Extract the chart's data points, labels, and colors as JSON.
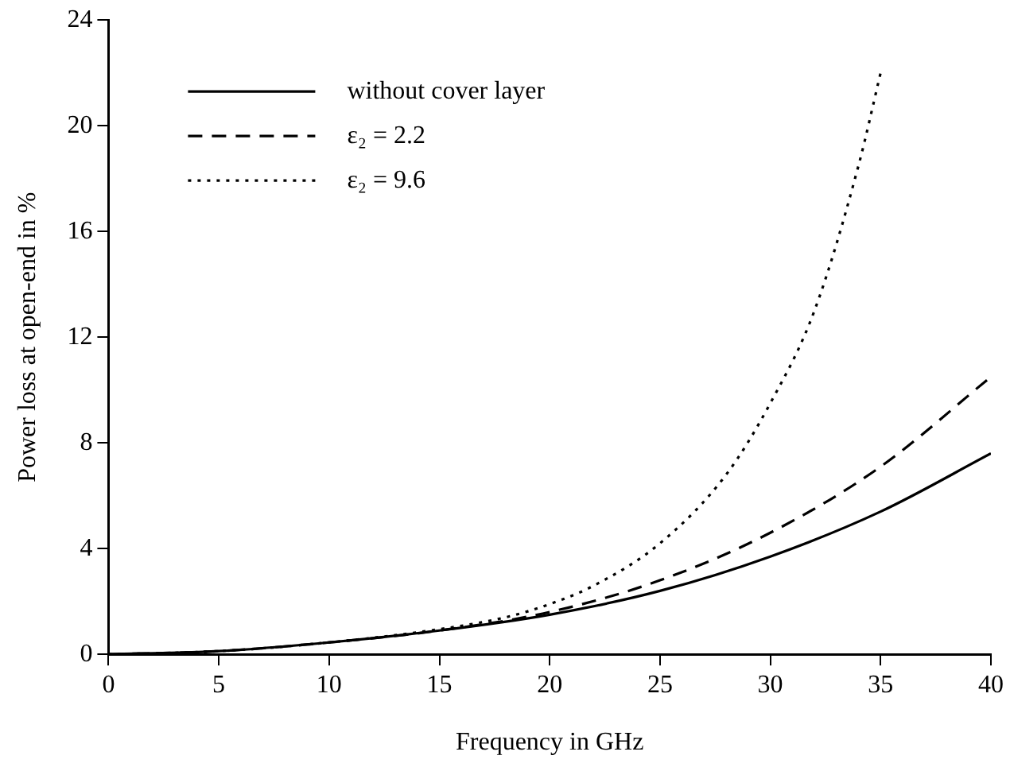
{
  "chart_data": {
    "type": "line",
    "xlabel": "Frequency in GHz",
    "ylabel": "Power loss at open-end in %",
    "xlim": [
      0,
      40
    ],
    "xticks": [
      0,
      5,
      10,
      15,
      20,
      25,
      30,
      35,
      40
    ],
    "ylim": [
      0,
      24
    ],
    "yticks": [
      0,
      4,
      8,
      12,
      16,
      20,
      24
    ],
    "grid": false,
    "legend": "top left",
    "marker": "none",
    "series": [
      {
        "name": "without cover layer",
        "color": "#000000",
        "line_style": "solid",
        "x": [
          0,
          5,
          10,
          15,
          20,
          25,
          30,
          35,
          40
        ],
        "values": [
          0,
          0.12,
          0.45,
          0.9,
          1.5,
          2.4,
          3.7,
          5.4,
          7.6
        ]
      },
      {
        "name": "ε₂ = 2.2",
        "color": "#000000",
        "line_style": "dashed",
        "x": [
          0,
          5,
          10,
          15,
          20,
          25,
          30,
          35,
          40
        ],
        "values": [
          0,
          0.12,
          0.45,
          0.9,
          1.6,
          2.8,
          4.6,
          7.1,
          10.5
        ]
      },
      {
        "name": "ε₂ = 9.6",
        "color": "#000000",
        "line_style": "dotted",
        "x": [
          0,
          5,
          10,
          15,
          18,
          20,
          22,
          25,
          28,
          30,
          32,
          34,
          35
        ],
        "values": [
          0,
          0.12,
          0.45,
          0.95,
          1.4,
          1.9,
          2.6,
          4.2,
          6.8,
          9.5,
          13,
          18.5,
          22
        ]
      }
    ]
  }
}
